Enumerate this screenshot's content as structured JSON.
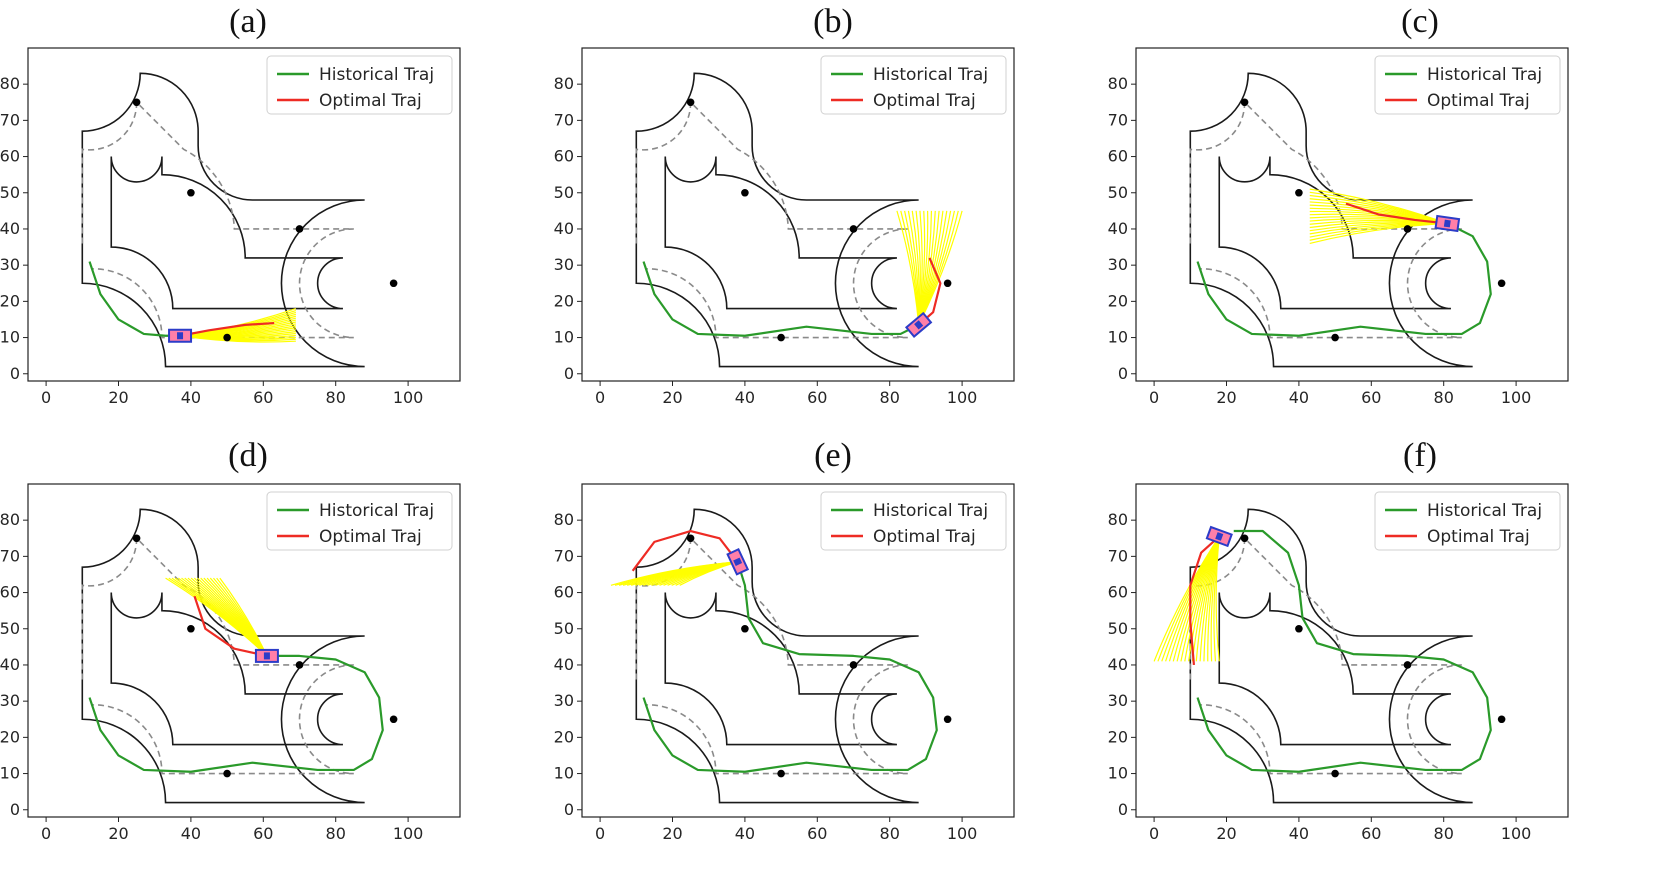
{
  "figure": {
    "colors": {
      "track": "#1a1a1a",
      "centerline": "#8a8a8a",
      "historical": "#2a9a2a",
      "optimal": "#ee2b24",
      "fan": "#ffff00",
      "car_body": "#ff7fa8",
      "car_edge": "#2c3cc8",
      "waypoint": "#000000"
    }
  },
  "chart_data": [
    {
      "type": "line",
      "label": "(a)",
      "legend": [
        "Historical Traj",
        "Optimal Traj"
      ],
      "xlim": [
        -5,
        112
      ],
      "ylim": [
        -2,
        86
      ],
      "xticks": [
        0,
        20,
        40,
        60,
        80,
        100
      ],
      "yticks": [
        0,
        10,
        20,
        30,
        40,
        50,
        60,
        70,
        80
      ],
      "waypoints": [
        [
          25,
          75
        ],
        [
          40,
          50
        ],
        [
          70,
          40
        ],
        [
          96,
          25
        ],
        [
          50,
          10
        ]
      ],
      "historical": [
        [
          12,
          31
        ],
        [
          15,
          22
        ],
        [
          20,
          15
        ],
        [
          27,
          11
        ],
        [
          33,
          10.5
        ],
        [
          37,
          10.5
        ]
      ],
      "optimal": [
        [
          37,
          10.5
        ],
        [
          45,
          12
        ],
        [
          55,
          13.5
        ],
        [
          63,
          14
        ]
      ],
      "car": {
        "x": 37,
        "y": 10.5,
        "heading": 0
      },
      "fan": {
        "from_x": 37,
        "from_y": 10.5,
        "to_x": 69,
        "y_min": 9,
        "y_max": 18,
        "n": 18
      }
    },
    {
      "type": "line",
      "label": "(b)",
      "legend": [
        "Historical Traj",
        "Optimal Traj"
      ],
      "xlim": [
        -5,
        112
      ],
      "ylim": [
        -2,
        86
      ],
      "xticks": [
        0,
        20,
        40,
        60,
        80,
        100
      ],
      "yticks": [
        0,
        10,
        20,
        30,
        40,
        50,
        60,
        70,
        80
      ],
      "waypoints": [
        [
          25,
          75
        ],
        [
          40,
          50
        ],
        [
          70,
          40
        ],
        [
          96,
          25
        ],
        [
          50,
          10
        ]
      ],
      "historical": [
        [
          12,
          31
        ],
        [
          15,
          22
        ],
        [
          20,
          15
        ],
        [
          27,
          11
        ],
        [
          40,
          10.5
        ],
        [
          57,
          13
        ],
        [
          75,
          11
        ],
        [
          83,
          11
        ],
        [
          88,
          13.5
        ]
      ],
      "optimal": [
        [
          88,
          13.5
        ],
        [
          92,
          17
        ],
        [
          94,
          25
        ],
        [
          91,
          32
        ]
      ],
      "car": {
        "x": 88,
        "y": 13.5,
        "heading": 40
      },
      "fan": {
        "from_x": 88,
        "from_y": 13.5,
        "to_y": 45,
        "x_min": 82,
        "x_max": 100,
        "n": 18
      }
    },
    {
      "type": "line",
      "label": "(c)",
      "legend": [
        "Historical Traj",
        "Optimal Traj"
      ],
      "xlim": [
        -5,
        112
      ],
      "ylim": [
        -2,
        86
      ],
      "xticks": [
        0,
        20,
        40,
        60,
        80,
        100
      ],
      "yticks": [
        0,
        10,
        20,
        30,
        40,
        50,
        60,
        70,
        80
      ],
      "waypoints": [
        [
          25,
          75
        ],
        [
          40,
          50
        ],
        [
          70,
          40
        ],
        [
          96,
          25
        ],
        [
          50,
          10
        ]
      ],
      "historical": [
        [
          12,
          31
        ],
        [
          15,
          22
        ],
        [
          20,
          15
        ],
        [
          27,
          11
        ],
        [
          40,
          10.5
        ],
        [
          57,
          13
        ],
        [
          75,
          11
        ],
        [
          85,
          11
        ],
        [
          90,
          14
        ],
        [
          93,
          22
        ],
        [
          92,
          31
        ],
        [
          88,
          38
        ],
        [
          81,
          41.5
        ]
      ],
      "optimal": [
        [
          81,
          41.5
        ],
        [
          72,
          42.5
        ],
        [
          62,
          44
        ],
        [
          53,
          47
        ]
      ],
      "car": {
        "x": 81,
        "y": 41.5,
        "heading": 172
      },
      "fan": {
        "from_x": 81,
        "from_y": 41.5,
        "to_x": 43,
        "y_min": 36,
        "y_max": 51,
        "n": 18
      }
    },
    {
      "type": "line",
      "label": "(d)",
      "legend": [
        "Historical Traj",
        "Optimal Traj"
      ],
      "xlim": [
        -5,
        112
      ],
      "ylim": [
        -2,
        86
      ],
      "xticks": [
        0,
        20,
        40,
        60,
        80,
        100
      ],
      "yticks": [
        0,
        10,
        20,
        30,
        40,
        50,
        60,
        70,
        80
      ],
      "waypoints": [
        [
          25,
          75
        ],
        [
          40,
          50
        ],
        [
          70,
          40
        ],
        [
          96,
          25
        ],
        [
          50,
          10
        ]
      ],
      "historical": [
        [
          12,
          31
        ],
        [
          15,
          22
        ],
        [
          20,
          15
        ],
        [
          27,
          11
        ],
        [
          40,
          10.5
        ],
        [
          57,
          13
        ],
        [
          75,
          11
        ],
        [
          85,
          11
        ],
        [
          90,
          14
        ],
        [
          93,
          22
        ],
        [
          92,
          31
        ],
        [
          88,
          38
        ],
        [
          80,
          41.5
        ],
        [
          70,
          42.5
        ],
        [
          61,
          42.5
        ]
      ],
      "optimal": [
        [
          61,
          42.5
        ],
        [
          52,
          44.5
        ],
        [
          44,
          50
        ],
        [
          41,
          59
        ]
      ],
      "car": {
        "x": 61,
        "y": 42.5,
        "heading": 180
      },
      "fan": {
        "from_x": 61,
        "from_y": 42.5,
        "to_y": 64,
        "x_min": 33,
        "x_max": 48,
        "n": 18
      }
    },
    {
      "type": "line",
      "label": "(e)",
      "legend": [
        "Historical Traj",
        "Optimal Traj"
      ],
      "xlim": [
        -5,
        112
      ],
      "ylim": [
        -2,
        86
      ],
      "xticks": [
        0,
        20,
        40,
        60,
        80,
        100
      ],
      "yticks": [
        0,
        10,
        20,
        30,
        40,
        50,
        60,
        70,
        80
      ],
      "waypoints": [
        [
          25,
          75
        ],
        [
          40,
          50
        ],
        [
          70,
          40
        ],
        [
          96,
          25
        ],
        [
          50,
          10
        ]
      ],
      "historical": [
        [
          12,
          31
        ],
        [
          15,
          22
        ],
        [
          20,
          15
        ],
        [
          27,
          11
        ],
        [
          40,
          10.5
        ],
        [
          57,
          13
        ],
        [
          75,
          11
        ],
        [
          85,
          11
        ],
        [
          90,
          14
        ],
        [
          93,
          22
        ],
        [
          92,
          31
        ],
        [
          88,
          38
        ],
        [
          80,
          41.5
        ],
        [
          70,
          42.5
        ],
        [
          55,
          43
        ],
        [
          45,
          46
        ],
        [
          41,
          53
        ],
        [
          40,
          62
        ],
        [
          38,
          68.5
        ]
      ],
      "optimal": [
        [
          38,
          68.5
        ],
        [
          33,
          75
        ],
        [
          25,
          77
        ],
        [
          15,
          74
        ],
        [
          9,
          66
        ]
      ],
      "car": {
        "x": 38,
        "y": 68.5,
        "heading": 115
      },
      "fan": {
        "from_x": 38,
        "from_y": 68.5,
        "to_y": 62,
        "x_min": 3,
        "x_max": 22,
        "n": 18
      }
    },
    {
      "type": "line",
      "label": "(f)",
      "legend": [
        "Historical Traj",
        "Optimal Traj"
      ],
      "xlim": [
        -5,
        112
      ],
      "ylim": [
        -2,
        86
      ],
      "xticks": [
        0,
        20,
        40,
        60,
        80,
        100
      ],
      "yticks": [
        0,
        10,
        20,
        30,
        40,
        50,
        60,
        70,
        80
      ],
      "waypoints": [
        [
          25,
          75
        ],
        [
          40,
          50
        ],
        [
          70,
          40
        ],
        [
          96,
          25
        ],
        [
          50,
          10
        ]
      ],
      "historical": [
        [
          12,
          31
        ],
        [
          15,
          22
        ],
        [
          20,
          15
        ],
        [
          27,
          11
        ],
        [
          40,
          10.5
        ],
        [
          57,
          13
        ],
        [
          75,
          11
        ],
        [
          85,
          11
        ],
        [
          90,
          14
        ],
        [
          93,
          22
        ],
        [
          92,
          31
        ],
        [
          88,
          38
        ],
        [
          80,
          41.5
        ],
        [
          70,
          42.5
        ],
        [
          55,
          43
        ],
        [
          45,
          46
        ],
        [
          41,
          53
        ],
        [
          40,
          62
        ],
        [
          37,
          71
        ],
        [
          30,
          77
        ],
        [
          22,
          77
        ]
      ],
      "optimal": [
        [
          18,
          75.5
        ],
        [
          13,
          71
        ],
        [
          10,
          62
        ],
        [
          10,
          52
        ],
        [
          11,
          40
        ]
      ],
      "car": {
        "x": 18,
        "y": 75.5,
        "heading": 160
      },
      "fan": {
        "from_x": 18,
        "from_y": 75.5,
        "to_y": 41,
        "x_min": 0,
        "x_max": 18,
        "n": 18
      }
    }
  ]
}
